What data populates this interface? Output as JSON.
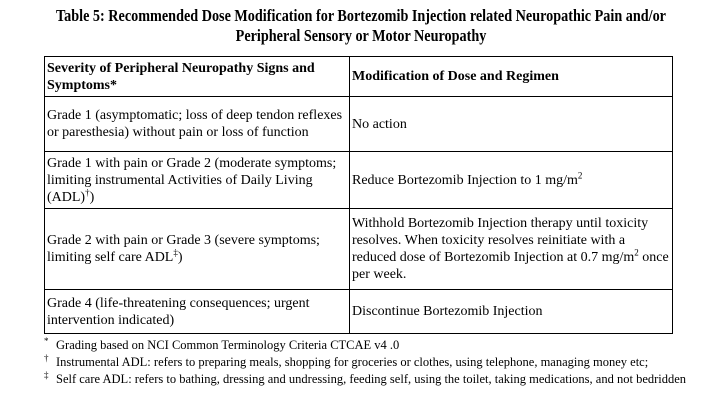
{
  "title": {
    "line1": "Table 5: Recommended Dose Modification for Bortezomib Injection related Neuropathic Pain and/or",
    "line2": "Peripheral Sensory or Motor Neuropathy"
  },
  "table": {
    "headers": [
      "Severity of Peripheral Neuropathy Signs and Symptoms*",
      "Modification of Dose and Regimen"
    ],
    "rows": [
      {
        "severity": "Grade 1 (asymptomatic; loss of deep tendon reflexes or paresthesia) without pain or loss of function",
        "action": "No action"
      },
      {
        "severity": "Grade 1 with pain or Grade 2 (moderate symptoms; limiting instrumental Activities of Daily Living (ADL)",
        "severity_mark": "†",
        "severity_end": ")",
        "action": "Reduce Bortezomib Injection to 1 mg/m",
        "action_sup": "2"
      },
      {
        "severity": "Grade 2 with pain or Grade 3 (severe symptoms; limiting self care ADL",
        "severity_mark": "‡",
        "severity_end": ")",
        "action": "Withhold Bortezomib Injection therapy until toxicity resolves.  When toxicity resolves reinitiate with a reduced dose of Bortezomib Injection at 0.7 mg/m",
        "action_sup": "2",
        "action_end": " once per week."
      },
      {
        "severity": "Grade 4 (life-threatening consequences; urgent intervention indicated)",
        "action": "Discontinue Bortezomib Injection"
      }
    ]
  },
  "footnotes": [
    {
      "mark": "*",
      "text": "Grading based on NCI Common Terminology Criteria CTCAE v4 .0"
    },
    {
      "mark": "†",
      "text": "Instrumental ADL: refers to preparing meals, shopping for groceries or clothes, using telephone, managing money etc;"
    },
    {
      "mark": "‡",
      "text": "Self care ADL: refers to bathing, dressing and undressing, feeding self, using the toilet, taking medications, and not bedridden"
    }
  ]
}
